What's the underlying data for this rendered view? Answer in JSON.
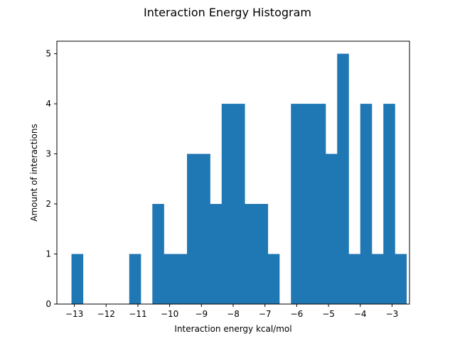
{
  "chart_data": {
    "type": "bar",
    "title": "Interaction Energy Histogram",
    "xlabel": "Interaction energy kcal/mol",
    "ylabel": "Amount of interactions",
    "bar_color": "#1f77b4",
    "xlim": [
      -13.55,
      -2.45
    ],
    "ylim": [
      0,
      5.25
    ],
    "x_ticks": [
      -13,
      -12,
      -11,
      -10,
      -9,
      -8,
      -7,
      -6,
      -5,
      -4,
      -3
    ],
    "x_tick_labels": [
      "−13",
      "−12",
      "−11",
      "−10",
      "−9",
      "−8",
      "−7",
      "−6",
      "−5",
      "−4",
      "−3"
    ],
    "y_ticks": [
      0,
      1,
      2,
      3,
      4,
      5
    ],
    "y_tick_labels": [
      "0",
      "1",
      "2",
      "3",
      "4",
      "5"
    ],
    "grid": false,
    "bins": {
      "start": -13.09,
      "width": 0.3636,
      "counts": [
        1,
        0,
        0,
        0,
        0,
        1,
        0,
        2,
        1,
        1,
        3,
        3,
        2,
        4,
        4,
        2,
        2,
        1,
        0,
        4,
        4,
        4,
        3,
        5,
        1,
        4,
        1,
        4,
        1
      ]
    }
  }
}
